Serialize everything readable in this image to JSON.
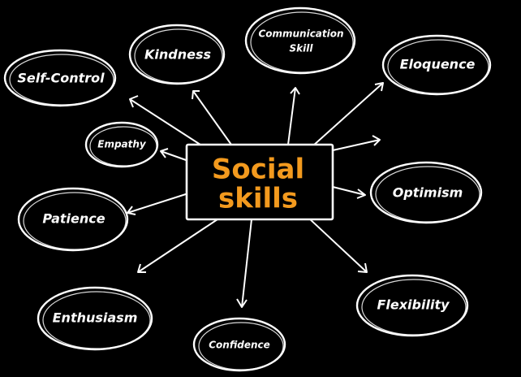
{
  "center": {
    "line1": "Social",
    "line2": "skills",
    "color": "#f39a1e"
  },
  "skills": [
    "Self-Control",
    "Kindness",
    "Communication",
    "Skill",
    "Eloquence",
    "Empathy",
    "Optimism",
    "Patience",
    "Flexibility",
    "Enthusiasm",
    "Confidence"
  ],
  "colors": {
    "background": "#000000",
    "stroke": "#ffffff",
    "accent": "#f39a1e"
  }
}
